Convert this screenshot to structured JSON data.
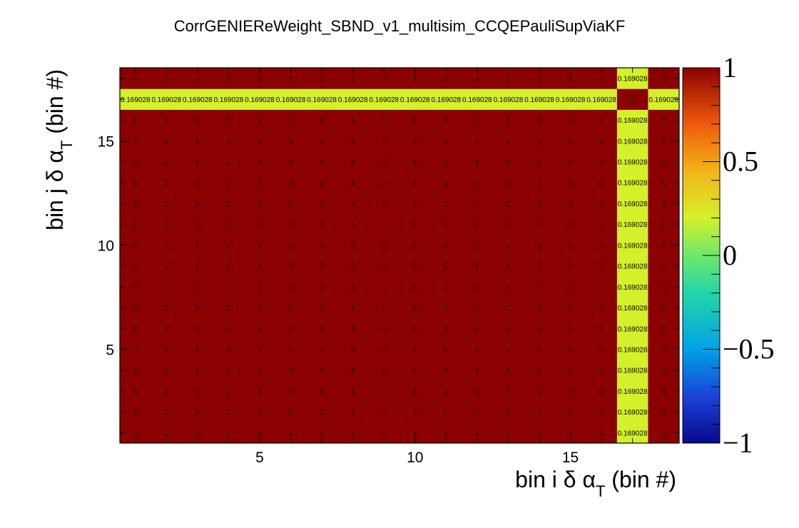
{
  "chart_data": {
    "type": "heatmap",
    "title": "CorrGENIEReWeight_SBND_v1_multisim_CCQEPauliSupViaKF",
    "xlabel": {
      "prefix": "bin i ",
      "greek": "δ α",
      "sub": "T",
      "suffix": " (bin #)"
    },
    "ylabel": {
      "prefix": "bin j ",
      "greek": "δ α",
      "sub": "T",
      "suffix": " (bin #)"
    },
    "xlim": [
      0.5,
      18.5
    ],
    "ylim": [
      0.5,
      18.5
    ],
    "xticks": [
      5,
      10,
      15
    ],
    "yticks": [
      5,
      10,
      15
    ],
    "zlim": [
      -1,
      1
    ],
    "palette_labels": [
      "1",
      "0.5",
      "0",
      "−0.5",
      "−1"
    ],
    "palette_values": [
      1,
      0.5,
      0,
      -0.5,
      -1
    ],
    "nbins": 18,
    "special_bin": 17,
    "off_value": 0.169028,
    "diag_value": 1,
    "cell_label_one": "1",
    "cell_label_off": "0.169028"
  }
}
